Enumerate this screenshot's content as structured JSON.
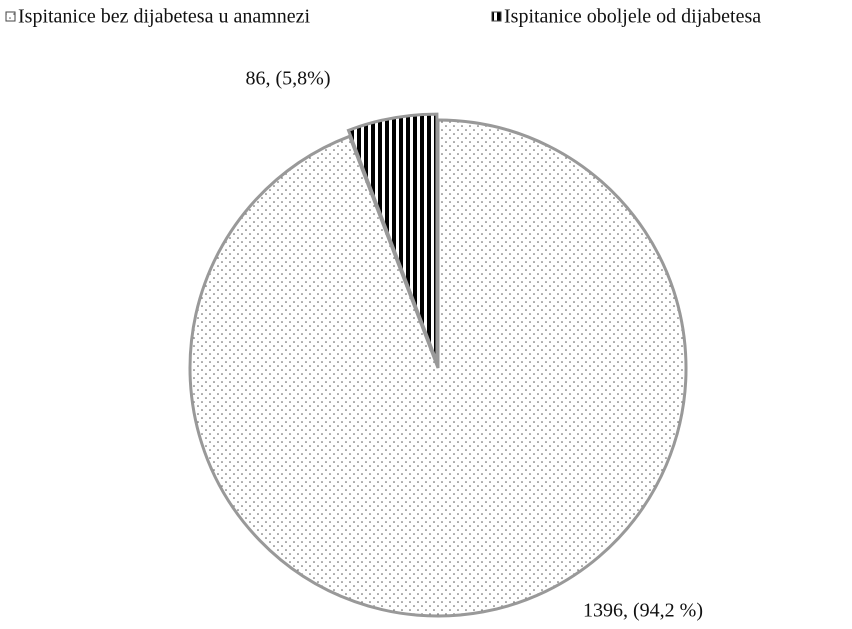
{
  "chart_data": {
    "type": "pie",
    "categories": [
      "Ispitanice bez dijabetesa u anamnezi",
      "Ispitanice oboljele od dijabetesa"
    ],
    "values": [
      1396,
      86
    ],
    "value_labels": [
      "1396, (94,2 %)",
      "86, (5,8%)"
    ]
  }
}
